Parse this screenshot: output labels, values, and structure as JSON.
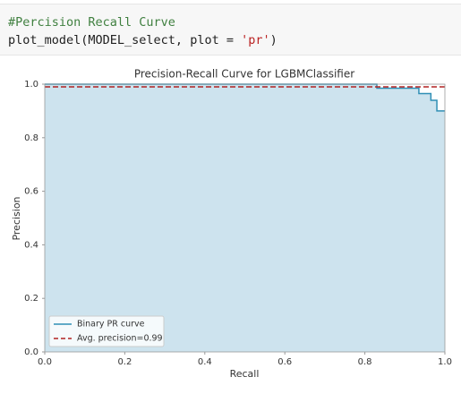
{
  "code": {
    "lines": [
      [
        "#Percision Recall Curve"
      ],
      [
        "plot_model(MODEL_select, plot = ",
        "'pr'",
        ")"
      ]
    ]
  },
  "chart_data": {
    "type": "line",
    "title": "Precision-Recall Curve for LGBMClassifier",
    "x_label": "Recall",
    "y_label": "Precision",
    "xlim": [
      0,
      1
    ],
    "ylim": [
      0,
      1
    ],
    "xticks": [
      {
        "value": 0,
        "label": "0.0"
      },
      0.2,
      0.4,
      0.6,
      0.8,
      {
        "value": 1,
        "label": "1.0"
      }
    ],
    "yticks": [
      {
        "value": 0,
        "label": "0.0"
      },
      0.2,
      0.4,
      0.6,
      0.8,
      {
        "value": 1,
        "label": "1.0"
      }
    ],
    "grid": false,
    "legend": "lower left",
    "series": [
      {
        "name": "Binary PR curve",
        "color": "#2f8fb5",
        "fill": "#cde3ee",
        "x": [
          0,
          0.83,
          0.83,
          0.935,
          0.935,
          0.965,
          0.965,
          0.98,
          0.98,
          1.0
        ],
        "values": [
          1,
          1,
          0.985,
          0.985,
          0.965,
          0.965,
          0.94,
          0.94,
          0.9,
          0.9
        ]
      },
      {
        "name": "Avg. precision=0.99",
        "color": "#b22222",
        "dashed": true,
        "values": [
          0.99
        ]
      }
    ]
  }
}
